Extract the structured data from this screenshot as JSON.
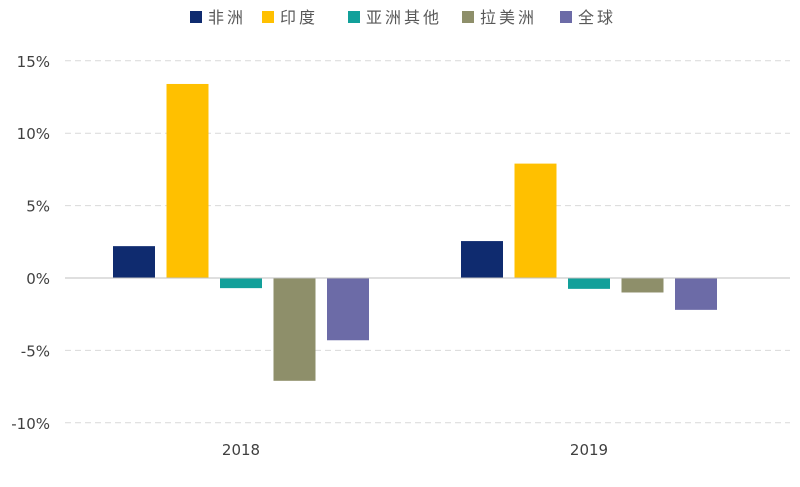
{
  "chart_data": {
    "type": "bar",
    "categories": [
      "2018",
      "2019"
    ],
    "series": [
      {
        "name": "非洲",
        "color": "#0f2b6f",
        "values": [
          2.2,
          2.55
        ]
      },
      {
        "name": "印度",
        "color": "#ffc000",
        "values": [
          13.4,
          7.9
        ]
      },
      {
        "name": "亚洲其他",
        "color": "#12a09a",
        "values": [
          -0.7,
          -0.75
        ]
      },
      {
        "name": "拉美洲",
        "color": "#8e8f6a",
        "values": [
          -7.1,
          -1.0
        ]
      },
      {
        "name": "全球",
        "color": "#6c6ba7",
        "values": [
          -4.3,
          -2.2
        ]
      }
    ],
    "ylim": [
      -10,
      15
    ],
    "yticks": [
      15,
      10,
      5,
      0,
      -5,
      -10
    ],
    "ytick_labels": [
      "15%",
      "10%",
      "5%",
      "0%",
      "-5%",
      "-10%"
    ],
    "title": "",
    "xlabel": "",
    "ylabel": "",
    "grid": true,
    "legend": "top"
  }
}
